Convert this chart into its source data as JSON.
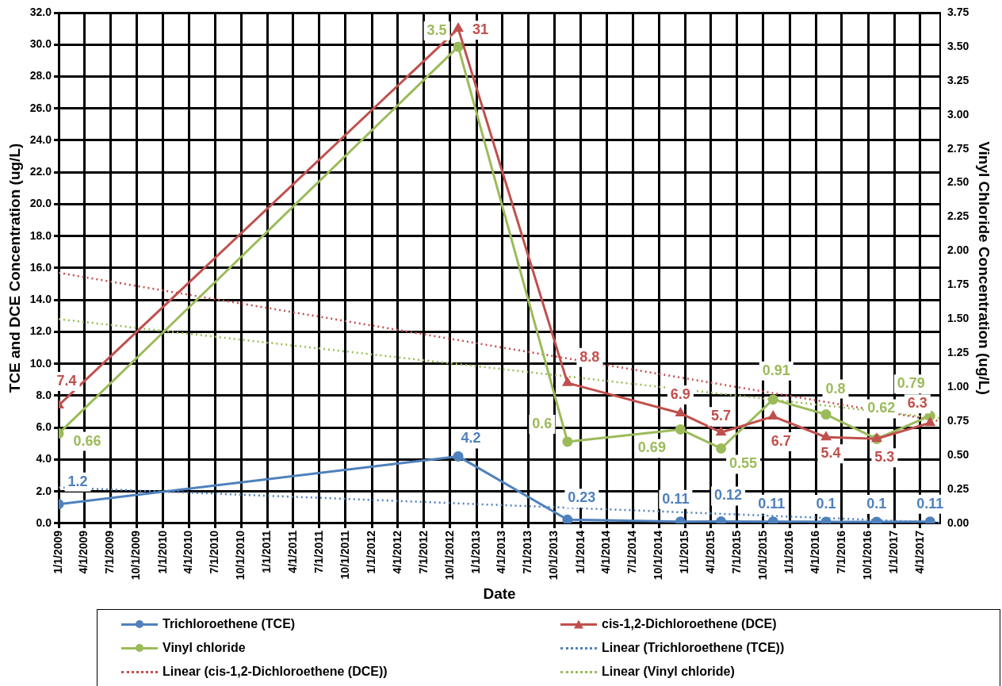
{
  "chart_data": {
    "type": "line",
    "xlabel": "Date",
    "ylabel": "TCE and DCE Concentration (ug/L)",
    "y2label": "Vinyl Chloride Concentration (ug/L)",
    "x": [
      "2009-01-01",
      "2012-10-29",
      "2013-11-15",
      "2014-12-15",
      "2015-05-06",
      "2015-11-04",
      "2016-05-07",
      "2016-10-31",
      "2017-05-06"
    ],
    "series": [
      {
        "name": "Trichloroethene (TCE)",
        "color": "#4f81bd",
        "marker": "circle",
        "line_style": "solid",
        "values": [
          1.2,
          4.2,
          0.23,
          0.11,
          0.12,
          0.11,
          0.1,
          0.1,
          0.11
        ],
        "value_labels": [
          "1.2",
          "4.2",
          "0.23",
          "0.11",
          "0.12",
          "0.11",
          "0.1",
          "0.1",
          "0.11"
        ]
      },
      {
        "name": "cis-1,2-Dichloroethene (DCE)",
        "color": "#c0504d",
        "marker": "triangle",
        "line_style": "solid",
        "values": [
          7.4,
          31,
          8.8,
          6.9,
          5.7,
          6.7,
          5.4,
          5.3,
          6.3
        ],
        "value_labels": [
          "7.4",
          "31",
          "8.8",
          "6.9",
          "5.7",
          "6.7",
          "5.4",
          "5.3",
          "6.3"
        ]
      },
      {
        "name": "Vinyl chloride",
        "color": "#9bbb59",
        "marker": "circle",
        "line_style": "solid",
        "axis": "y2",
        "values": [
          0.66,
          3.5,
          0.6,
          0.69,
          0.55,
          0.91,
          0.8,
          0.62,
          0.79
        ],
        "value_labels": [
          "0.66",
          "3.5",
          "0.6",
          "0.69",
          "0.55",
          "0.91",
          "0.8",
          "0.62",
          "0.79"
        ]
      },
      {
        "name": "Linear (Trichloroethene (TCE))",
        "color": "#4f81bd",
        "marker": "none",
        "line_style": "dotted",
        "x": [
          "2009-01-01",
          "2017-06-10"
        ],
        "values": [
          2.25,
          0.05
        ]
      },
      {
        "name": "Linear (cis-1,2-Dichloroethene (DCE))",
        "color": "#c0504d",
        "marker": "none",
        "line_style": "dotted",
        "x": [
          "2009-01-01",
          "2017-06-10"
        ],
        "values": [
          15.7,
          6.4
        ]
      },
      {
        "name": "Linear (Vinyl chloride)",
        "color": "#9bbb59",
        "marker": "none",
        "line_style": "dotted",
        "axis": "y2",
        "x": [
          "2009-01-01",
          "2017-06-10"
        ],
        "values": [
          1.5,
          0.77
        ]
      }
    ],
    "xlim": [
      "2009-01-01",
      "2017-06-10"
    ],
    "xticks": [
      {
        "value": "2009-01-01",
        "label": "1/1/2009"
      },
      {
        "value": "2009-04-01",
        "label": "4/1/2009"
      },
      {
        "value": "2009-07-01",
        "label": "7/1/2009"
      },
      {
        "value": "2009-10-01",
        "label": "10/1/2009"
      },
      {
        "value": "2010-01-01",
        "label": "1/1/2010"
      },
      {
        "value": "2010-04-01",
        "label": "4/1/2010"
      },
      {
        "value": "2010-07-01",
        "label": "7/1/2010"
      },
      {
        "value": "2010-10-01",
        "label": "10/1/2010"
      },
      {
        "value": "2011-01-01",
        "label": "1/1/2011"
      },
      {
        "value": "2011-04-01",
        "label": "4/1/2011"
      },
      {
        "value": "2011-07-01",
        "label": "7/1/2011"
      },
      {
        "value": "2011-10-01",
        "label": "10/1/2011"
      },
      {
        "value": "2012-01-01",
        "label": "1/1/2012"
      },
      {
        "value": "2012-04-01",
        "label": "4/1/2012"
      },
      {
        "value": "2012-07-01",
        "label": "7/1/2012"
      },
      {
        "value": "2012-10-01",
        "label": "10/1/2012"
      },
      {
        "value": "2013-01-01",
        "label": "1/1/2013"
      },
      {
        "value": "2013-04-01",
        "label": "4/1/2013"
      },
      {
        "value": "2013-07-01",
        "label": "7/1/2013"
      },
      {
        "value": "2013-10-01",
        "label": "10/1/2013"
      },
      {
        "value": "2014-01-01",
        "label": "1/1/2014"
      },
      {
        "value": "2014-04-01",
        "label": "4/1/2014"
      },
      {
        "value": "2014-07-01",
        "label": "7/1/2014"
      },
      {
        "value": "2014-10-01",
        "label": "10/1/2014"
      },
      {
        "value": "2015-01-01",
        "label": "1/1/2015"
      },
      {
        "value": "2015-04-01",
        "label": "4/1/2015"
      },
      {
        "value": "2015-07-01",
        "label": "7/1/2015"
      },
      {
        "value": "2015-10-01",
        "label": "10/1/2015"
      },
      {
        "value": "2016-01-01",
        "label": "1/1/2016"
      },
      {
        "value": "2016-04-01",
        "label": "4/1/2016"
      },
      {
        "value": "2016-07-01",
        "label": "7/1/2016"
      },
      {
        "value": "2016-10-01",
        "label": "10/1/2016"
      },
      {
        "value": "2017-01-01",
        "label": "1/1/2017"
      },
      {
        "value": "2017-04-01",
        "label": "4/1/2017"
      }
    ],
    "ylim": [
      0,
      32
    ],
    "yticks": [
      {
        "value": 0,
        "label": "0.0"
      },
      {
        "value": 2,
        "label": "2.0"
      },
      {
        "value": 4,
        "label": "4.0"
      },
      {
        "value": 6,
        "label": "6.0"
      },
      {
        "value": 8,
        "label": "8.0"
      },
      {
        "value": 10,
        "label": "10.0"
      },
      {
        "value": 12,
        "label": "12.0"
      },
      {
        "value": 14,
        "label": "14.0"
      },
      {
        "value": 16,
        "label": "16.0"
      },
      {
        "value": 18,
        "label": "18.0"
      },
      {
        "value": 20,
        "label": "20.0"
      },
      {
        "value": 22,
        "label": "22.0"
      },
      {
        "value": 24,
        "label": "24.0"
      },
      {
        "value": 26,
        "label": "26.0"
      },
      {
        "value": 28,
        "label": "28.0"
      },
      {
        "value": 30,
        "label": "30.0"
      },
      {
        "value": 32,
        "label": "32.0"
      }
    ],
    "y2lim": [
      0,
      3.75
    ],
    "y2ticks": [
      {
        "value": 0,
        "label": "0.00"
      },
      {
        "value": 0.25,
        "label": "0.25"
      },
      {
        "value": 0.5,
        "label": "0.50"
      },
      {
        "value": 0.75,
        "label": "0.75"
      },
      {
        "value": 1,
        "label": "1.00"
      },
      {
        "value": 1.25,
        "label": "1.25"
      },
      {
        "value": 1.5,
        "label": "1.50"
      },
      {
        "value": 1.75,
        "label": "1.75"
      },
      {
        "value": 2,
        "label": "2.00"
      },
      {
        "value": 2.25,
        "label": "2.25"
      },
      {
        "value": 2.5,
        "label": "2.50"
      },
      {
        "value": 2.75,
        "label": "2.75"
      },
      {
        "value": 3,
        "label": "3.00"
      },
      {
        "value": 3.25,
        "label": "3.25"
      },
      {
        "value": 3.5,
        "label": "3.50"
      },
      {
        "value": 3.75,
        "label": "3.75"
      }
    ],
    "grid": true,
    "legend": "bottom"
  }
}
